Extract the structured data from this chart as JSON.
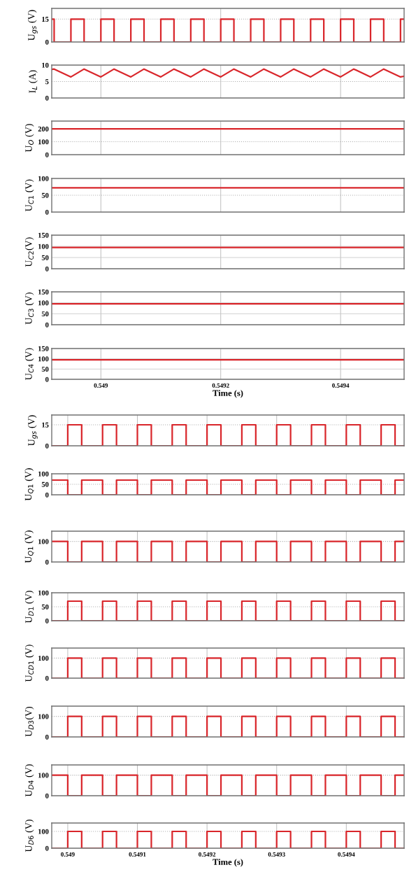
{
  "chart_data": [
    {
      "type": "step",
      "ylabel": "U$_{gs}$ (V)",
      "xlim": [
        0.548918,
        0.549506
      ],
      "ylim": [
        0,
        22
      ],
      "xticks": [
        0.549,
        0.5492,
        0.5494
      ],
      "yticks": [
        0,
        15
      ],
      "grid": "x",
      "ref_lines": [
        {
          "axis": "y",
          "value": 15,
          "color": "#b0b0b0",
          "line_style": "dotted"
        }
      ],
      "tick_labels": "y",
      "series": [
        {
          "color": "#d9262b",
          "x": [
            0.548918,
            0.548922,
            0.54895,
            0.548972,
            0.549,
            0.549022,
            0.54905,
            0.549072,
            0.5491,
            0.549122,
            0.54915,
            0.549172,
            0.5492,
            0.549222,
            0.54925,
            0.549272,
            0.5493,
            0.549322,
            0.54935,
            0.549372,
            0.5494,
            0.549422,
            0.54945,
            0.549472,
            0.5495,
            0.549506
          ],
          "values": [
            15,
            0,
            15,
            0,
            15,
            0,
            15,
            0,
            15,
            0,
            15,
            0,
            15,
            0,
            15,
            0,
            15,
            0,
            15,
            0,
            15,
            0,
            15,
            0,
            15,
            15
          ]
        }
      ]
    },
    {
      "type": "line",
      "ylabel": "I$_{L}$ (A)",
      "xlim": [
        0.548918,
        0.549506
      ],
      "ylim": [
        0,
        10
      ],
      "xticks": [
        0.549,
        0.5492,
        0.5494
      ],
      "yticks": [
        0,
        5,
        10
      ],
      "grid": "x",
      "ref_lines": [
        {
          "axis": "y",
          "value": 5,
          "color": "#b0b0b0",
          "line_style": "dotted"
        }
      ],
      "tick_labels": "y",
      "series": [
        {
          "color": "#d9262b",
          "x": [
            0.548918,
            0.548922,
            0.54895,
            0.548972,
            0.549,
            0.549022,
            0.54905,
            0.549072,
            0.5491,
            0.549122,
            0.54915,
            0.549172,
            0.5492,
            0.549222,
            0.54925,
            0.549272,
            0.5493,
            0.549322,
            0.54935,
            0.549372,
            0.5494,
            0.549422,
            0.54945,
            0.549472,
            0.5495,
            0.549506
          ],
          "values": [
            8.7,
            8.8,
            6.4,
            8.8,
            6.4,
            8.8,
            6.4,
            8.8,
            6.4,
            8.8,
            6.4,
            8.8,
            6.4,
            8.8,
            6.4,
            8.8,
            6.4,
            8.8,
            6.4,
            8.8,
            6.4,
            8.8,
            6.4,
            8.8,
            6.4,
            6.6
          ]
        }
      ]
    },
    {
      "type": "line",
      "ylabel": "U$_{O}$ (V)",
      "xlim": [
        0.548918,
        0.549506
      ],
      "ylim": [
        0,
        260
      ],
      "xticks": [
        0.549,
        0.5492,
        0.5494
      ],
      "yticks": [
        0,
        100,
        200
      ],
      "grid": "x",
      "ref_lines": [
        {
          "axis": "y",
          "value": 100,
          "color": "#b0b0b0",
          "line_style": "dotted"
        }
      ],
      "tick_labels": "y",
      "series": [
        {
          "color": "#d9262b",
          "x": [
            0.548918,
            0.549506
          ],
          "values": [
            200,
            200
          ]
        }
      ]
    },
    {
      "type": "line",
      "ylabel": "U$_{C1}$ (V)",
      "xlim": [
        0.548918,
        0.549506
      ],
      "ylim": [
        0,
        100
      ],
      "xticks": [
        0.549,
        0.5492,
        0.5494
      ],
      "yticks": [
        0,
        50,
        100
      ],
      "grid": "x",
      "ref_lines": [
        {
          "axis": "y",
          "value": 50,
          "color": "#b0b0b0",
          "line_style": "dotted"
        }
      ],
      "tick_labels": "y",
      "series": [
        {
          "color": "#d9262b",
          "x": [
            0.548918,
            0.549506
          ],
          "values": [
            72,
            72
          ]
        }
      ]
    },
    {
      "type": "line",
      "ylabel": "U$_{C2}$(V)",
      "xlim": [
        0.548918,
        0.549506
      ],
      "ylim": [
        0,
        150
      ],
      "xticks": [
        0.549,
        0.5492,
        0.5494
      ],
      "yticks": [
        0,
        50,
        100,
        150
      ],
      "grid": true,
      "tick_labels": "y",
      "series": [
        {
          "color": "#d9262b",
          "x": [
            0.548918,
            0.549506
          ],
          "values": [
            95,
            95
          ]
        }
      ]
    },
    {
      "type": "line",
      "ylabel": "U$_{C3}$ (V)",
      "xlim": [
        0.548918,
        0.549506
      ],
      "ylim": [
        0,
        150
      ],
      "xticks": [
        0.549,
        0.5492,
        0.5494
      ],
      "yticks": [
        0,
        50,
        100,
        150
      ],
      "grid": true,
      "tick_labels": "y",
      "series": [
        {
          "color": "#d9262b",
          "x": [
            0.548918,
            0.549506
          ],
          "values": [
            95,
            95
          ]
        }
      ]
    },
    {
      "type": "line",
      "ylabel": "U$_{C4}$ (V)",
      "xlabel": "Time (s)",
      "xlim": [
        0.548918,
        0.549506
      ],
      "ylim": [
        0,
        150
      ],
      "xticks": [
        0.549,
        0.5492,
        0.5494
      ],
      "yticks": [
        0,
        50,
        100,
        150
      ],
      "grid": true,
      "series": [
        {
          "color": "#d9262b",
          "x": [
            0.548918,
            0.549506
          ],
          "values": [
            95,
            95
          ]
        }
      ]
    },
    {
      "type": "step",
      "ylabel": "U$_{gs}$ (V)",
      "xlim": [
        0.548977,
        0.549483
      ],
      "ylim": [
        0,
        22
      ],
      "xticks": [
        0.549,
        0.5491,
        0.5492,
        0.5493,
        0.5494
      ],
      "yticks": [
        0,
        15
      ],
      "grid": "x",
      "ref_lines": [
        {
          "axis": "y",
          "value": 15,
          "color": "#b0b0b0",
          "line_style": "dotted"
        }
      ],
      "tick_labels": "y",
      "series": [
        {
          "color": "#d9262b",
          "x": [
            0.548977,
            0.549,
            0.54902,
            0.54905,
            0.54907,
            0.5491,
            0.54912,
            0.54915,
            0.54917,
            0.5492,
            0.54922,
            0.54925,
            0.54927,
            0.5493,
            0.54932,
            0.54935,
            0.54937,
            0.5494,
            0.54942,
            0.54945,
            0.54947,
            0.549483
          ],
          "values": [
            0,
            15,
            0,
            15,
            0,
            15,
            0,
            15,
            0,
            15,
            0,
            15,
            0,
            15,
            0,
            15,
            0,
            15,
            0,
            15,
            0,
            0
          ]
        }
      ]
    },
    {
      "type": "step",
      "ylabel": "U$_{Q1}$ (V)",
      "xlim": [
        0.548977,
        0.549483
      ],
      "ylim": [
        0,
        100
      ],
      "xticks": [
        0.549,
        0.5491,
        0.5492,
        0.5493,
        0.5494
      ],
      "yticks": [
        0,
        50,
        100
      ],
      "grid": "x",
      "ref_lines": [
        {
          "axis": "y",
          "value": 50,
          "color": "#b0b0b0",
          "line_style": "dotted"
        }
      ],
      "tick_labels": "y",
      "series": [
        {
          "color": "#d9262b",
          "x": [
            0.548977,
            0.549,
            0.54902,
            0.54905,
            0.54907,
            0.5491,
            0.54912,
            0.54915,
            0.54917,
            0.5492,
            0.54922,
            0.54925,
            0.54927,
            0.5493,
            0.54932,
            0.54935,
            0.54937,
            0.5494,
            0.54942,
            0.54945,
            0.54947,
            0.549483
          ],
          "values": [
            70,
            0,
            70,
            0,
            70,
            0,
            70,
            0,
            70,
            0,
            70,
            0,
            70,
            0,
            70,
            0,
            70,
            0,
            70,
            0,
            70,
            70
          ]
        }
      ]
    },
    {
      "type": "step",
      "ylabel": "U$_{Q1}$ (V)",
      "xlim": [
        0.548977,
        0.549483
      ],
      "ylim": [
        0,
        150
      ],
      "xticks": [
        0.549,
        0.5491,
        0.5492,
        0.5493,
        0.5494
      ],
      "yticks": [
        0,
        100
      ],
      "grid": "x",
      "ref_lines": [
        {
          "axis": "y",
          "value": 100,
          "color": "#b0b0b0",
          "line_style": "dotted"
        }
      ],
      "tick_labels": "y",
      "series": [
        {
          "color": "#d9262b",
          "x": [
            0.548977,
            0.549,
            0.54902,
            0.54905,
            0.54907,
            0.5491,
            0.54912,
            0.54915,
            0.54917,
            0.5492,
            0.54922,
            0.54925,
            0.54927,
            0.5493,
            0.54932,
            0.54935,
            0.54937,
            0.5494,
            0.54942,
            0.54945,
            0.54947,
            0.549483
          ],
          "values": [
            100,
            0,
            100,
            0,
            100,
            0,
            100,
            0,
            100,
            0,
            100,
            0,
            100,
            0,
            100,
            0,
            100,
            0,
            100,
            0,
            100,
            100
          ]
        }
      ]
    },
    {
      "type": "step",
      "ylabel": "U$_{D1}$ (V)",
      "xlim": [
        0.548977,
        0.549483
      ],
      "ylim": [
        0,
        100
      ],
      "xticks": [
        0.549,
        0.5491,
        0.5492,
        0.5493,
        0.5494
      ],
      "yticks": [
        0,
        50,
        100
      ],
      "grid": "x",
      "ref_lines": [
        {
          "axis": "y",
          "value": 50,
          "color": "#b0b0b0",
          "line_style": "dotted"
        }
      ],
      "tick_labels": "y",
      "series": [
        {
          "color": "#d9262b",
          "x": [
            0.548977,
            0.549,
            0.54902,
            0.54905,
            0.54907,
            0.5491,
            0.54912,
            0.54915,
            0.54917,
            0.5492,
            0.54922,
            0.54925,
            0.54927,
            0.5493,
            0.54932,
            0.54935,
            0.54937,
            0.5494,
            0.54942,
            0.54945,
            0.54947,
            0.549483
          ],
          "values": [
            0,
            70,
            0,
            70,
            0,
            70,
            0,
            70,
            0,
            70,
            0,
            70,
            0,
            70,
            0,
            70,
            0,
            70,
            0,
            70,
            0,
            0
          ]
        }
      ]
    },
    {
      "type": "step",
      "ylabel": "U$_{CD1}$ (V)",
      "xlim": [
        0.548977,
        0.549483
      ],
      "ylim": [
        0,
        150
      ],
      "xticks": [
        0.549,
        0.5491,
        0.5492,
        0.5493,
        0.5494
      ],
      "yticks": [
        0,
        100
      ],
      "grid": "x",
      "ref_lines": [
        {
          "axis": "y",
          "value": 100,
          "color": "#b0b0b0",
          "line_style": "dotted"
        }
      ],
      "tick_labels": "y",
      "series": [
        {
          "color": "#d9262b",
          "x": [
            0.548977,
            0.549,
            0.54902,
            0.54905,
            0.54907,
            0.5491,
            0.54912,
            0.54915,
            0.54917,
            0.5492,
            0.54922,
            0.54925,
            0.54927,
            0.5493,
            0.54932,
            0.54935,
            0.54937,
            0.5494,
            0.54942,
            0.54945,
            0.54947,
            0.549483
          ],
          "values": [
            0,
            100,
            0,
            100,
            0,
            100,
            0,
            100,
            0,
            100,
            0,
            100,
            0,
            100,
            0,
            100,
            0,
            100,
            0,
            100,
            0,
            0
          ]
        }
      ]
    },
    {
      "type": "step",
      "ylabel": "U$_{D3}$(V)",
      "xlim": [
        0.548977,
        0.549483
      ],
      "ylim": [
        0,
        150
      ],
      "xticks": [
        0.549,
        0.5491,
        0.5492,
        0.5493,
        0.5494
      ],
      "yticks": [
        0,
        100
      ],
      "grid": "x",
      "ref_lines": [
        {
          "axis": "y",
          "value": 100,
          "color": "#b0b0b0",
          "line_style": "dotted"
        }
      ],
      "tick_labels": "y",
      "series": [
        {
          "color": "#d9262b",
          "x": [
            0.548977,
            0.549,
            0.54902,
            0.54905,
            0.54907,
            0.5491,
            0.54912,
            0.54915,
            0.54917,
            0.5492,
            0.54922,
            0.54925,
            0.54927,
            0.5493,
            0.54932,
            0.54935,
            0.54937,
            0.5494,
            0.54942,
            0.54945,
            0.54947,
            0.549483
          ],
          "values": [
            0,
            100,
            0,
            100,
            0,
            100,
            0,
            100,
            0,
            100,
            0,
            100,
            0,
            100,
            0,
            100,
            0,
            100,
            0,
            100,
            0,
            0
          ]
        }
      ]
    },
    {
      "type": "step",
      "ylabel": "U$_{D4}$ (V)",
      "xlim": [
        0.548977,
        0.549483
      ],
      "ylim": [
        0,
        150
      ],
      "xticks": [
        0.549,
        0.5491,
        0.5492,
        0.5493,
        0.5494
      ],
      "yticks": [
        0,
        100
      ],
      "grid": "x",
      "ref_lines": [
        {
          "axis": "y",
          "value": 100,
          "color": "#b0b0b0",
          "line_style": "dotted"
        }
      ],
      "tick_labels": "y",
      "series": [
        {
          "color": "#d9262b",
          "x": [
            0.548977,
            0.549,
            0.54902,
            0.54905,
            0.54907,
            0.5491,
            0.54912,
            0.54915,
            0.54917,
            0.5492,
            0.54922,
            0.54925,
            0.54927,
            0.5493,
            0.54932,
            0.54935,
            0.54937,
            0.5494,
            0.54942,
            0.54945,
            0.54947,
            0.549483
          ],
          "values": [
            100,
            0,
            100,
            0,
            100,
            0,
            100,
            0,
            100,
            0,
            100,
            0,
            100,
            0,
            100,
            0,
            100,
            0,
            100,
            0,
            100,
            100
          ]
        }
      ]
    },
    {
      "type": "step",
      "ylabel": "U$_{D6}$ (V)",
      "xlabel": "Time (s)",
      "xlim": [
        0.548977,
        0.549483
      ],
      "ylim": [
        0,
        150
      ],
      "xticks": [
        0.549,
        0.5491,
        0.5492,
        0.5493,
        0.5494
      ],
      "yticks": [
        0,
        100
      ],
      "grid": "x",
      "ref_lines": [
        {
          "axis": "y",
          "value": 100,
          "color": "#b0b0b0",
          "line_style": "dotted"
        }
      ],
      "series": [
        {
          "color": "#d9262b",
          "x": [
            0.548977,
            0.549,
            0.54902,
            0.54905,
            0.54907,
            0.5491,
            0.54912,
            0.54915,
            0.54917,
            0.5492,
            0.54922,
            0.54925,
            0.54927,
            0.5493,
            0.54932,
            0.54935,
            0.54937,
            0.5494,
            0.54942,
            0.54945,
            0.54947,
            0.549483
          ],
          "values": [
            0,
            100,
            0,
            100,
            0,
            100,
            0,
            100,
            0,
            100,
            0,
            100,
            0,
            100,
            0,
            100,
            0,
            100,
            0,
            100,
            0,
            0
          ]
        }
      ]
    }
  ]
}
